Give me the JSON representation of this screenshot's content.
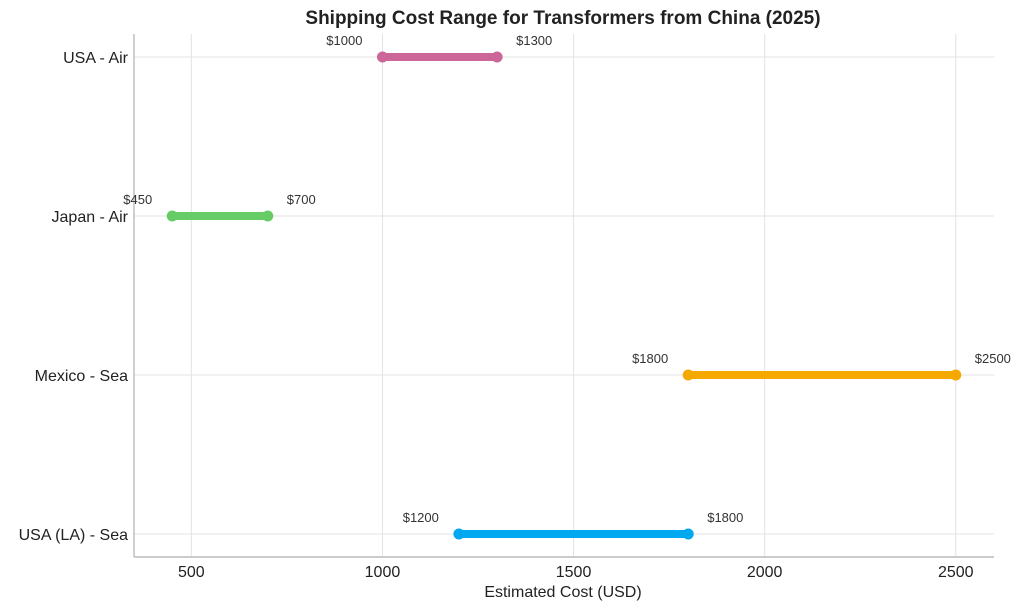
{
  "chart_data": {
    "type": "range",
    "title": "Shipping Cost Range for Transformers from China (2025)",
    "xlabel": "Estimated Cost (USD)",
    "ylabel": "",
    "xlim": [
      350,
      2600
    ],
    "xticks": [
      500,
      1000,
      1500,
      2000,
      2500
    ],
    "grid": true,
    "series": [
      {
        "name": "USA - Air",
        "min": 1000,
        "max": 1300,
        "min_label": "$1000",
        "max_label": "$1300",
        "color": "#cc6699"
      },
      {
        "name": "Japan - Air",
        "min": 450,
        "max": 700,
        "min_label": "$450",
        "max_label": "$700",
        "color": "#66cc66"
      },
      {
        "name": "Mexico - Sea",
        "min": 1800,
        "max": 2500,
        "min_label": "$1800",
        "max_label": "$2500",
        "color": "#f5a800"
      },
      {
        "name": "USA (LA) - Sea",
        "min": 1200,
        "max": 1800,
        "min_label": "$1200",
        "max_label": "$1800",
        "color": "#00a8f0"
      }
    ]
  }
}
